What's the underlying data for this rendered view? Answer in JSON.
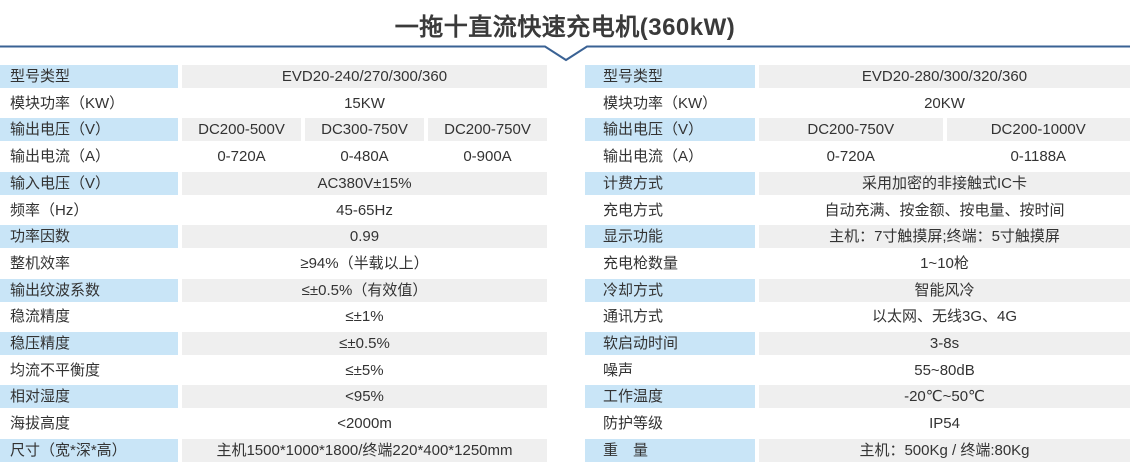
{
  "title": "一拖十直流快速充电机(360kW)",
  "colors": {
    "label_blue": "#c9e5f7",
    "value_gray": "#efefef",
    "divider_blue": "#3a6294",
    "text_dark": "#3a3a3a"
  },
  "left_table": {
    "rows": [
      {
        "label": "型号类型",
        "values": [
          "EVD20-240/270/300/360"
        ]
      },
      {
        "label": "模块功率（KW）",
        "values": [
          "15KW"
        ]
      },
      {
        "label": "输出电压（V）",
        "values": [
          "DC200-500V",
          "DC300-750V",
          "DC200-750V"
        ]
      },
      {
        "label": "输出电流（A）",
        "values": [
          "0-720A",
          "0-480A",
          "0-900A"
        ]
      },
      {
        "label": "输入电压（V）",
        "values": [
          "AC380V±15%"
        ]
      },
      {
        "label": "频率（Hz）",
        "values": [
          "45-65Hz"
        ]
      },
      {
        "label": "功率因数",
        "values": [
          "0.99"
        ]
      },
      {
        "label": "整机效率",
        "values": [
          "≥94%（半载以上）"
        ]
      },
      {
        "label": "输出纹波系数",
        "values": [
          "≤±0.5%（有效值）"
        ]
      },
      {
        "label": "稳流精度",
        "values": [
          "≤±1%"
        ]
      },
      {
        "label": "稳压精度",
        "values": [
          "≤±0.5%"
        ]
      },
      {
        "label": "均流不平衡度",
        "values": [
          "≤±5%"
        ]
      },
      {
        "label": "相对湿度",
        "values": [
          "<95%"
        ]
      },
      {
        "label": "海拔高度",
        "values": [
          "<2000m"
        ]
      },
      {
        "label": "尺寸（宽*深*高）",
        "values": [
          "主机1500*1000*1800/终端220*400*1250mm"
        ]
      }
    ]
  },
  "right_table": {
    "rows": [
      {
        "label": "型号类型",
        "values": [
          "EVD20-280/300/320/360"
        ]
      },
      {
        "label": "模块功率（KW）",
        "values": [
          "20KW"
        ]
      },
      {
        "label": "输出电压（V）",
        "values": [
          "DC200-750V",
          "DC200-1000V"
        ]
      },
      {
        "label": "输出电流（A）",
        "values": [
          "0-720A",
          "0-1188A"
        ]
      },
      {
        "label": "计费方式",
        "values": [
          "采用加密的非接触式IC卡"
        ]
      },
      {
        "label": "充电方式",
        "values": [
          "自动充满、按金额、按电量、按时间"
        ]
      },
      {
        "label": "显示功能",
        "values": [
          "主机：7寸触摸屏;终端：5寸触摸屏"
        ]
      },
      {
        "label": "充电枪数量",
        "values": [
          "1~10枪"
        ]
      },
      {
        "label": "冷却方式",
        "values": [
          "智能风冷"
        ]
      },
      {
        "label": "通讯方式",
        "values": [
          "以太网、无线3G、4G"
        ]
      },
      {
        "label": "软启动时间",
        "values": [
          "3-8s"
        ]
      },
      {
        "label": "噪声",
        "values": [
          "55~80dB"
        ]
      },
      {
        "label": "工作温度",
        "values": [
          "-20℃~50℃"
        ]
      },
      {
        "label": "防护等级",
        "values": [
          "IP54"
        ]
      },
      {
        "label": "重　量",
        "values": [
          "主机：500Kg / 终端:80Kg"
        ]
      }
    ]
  }
}
